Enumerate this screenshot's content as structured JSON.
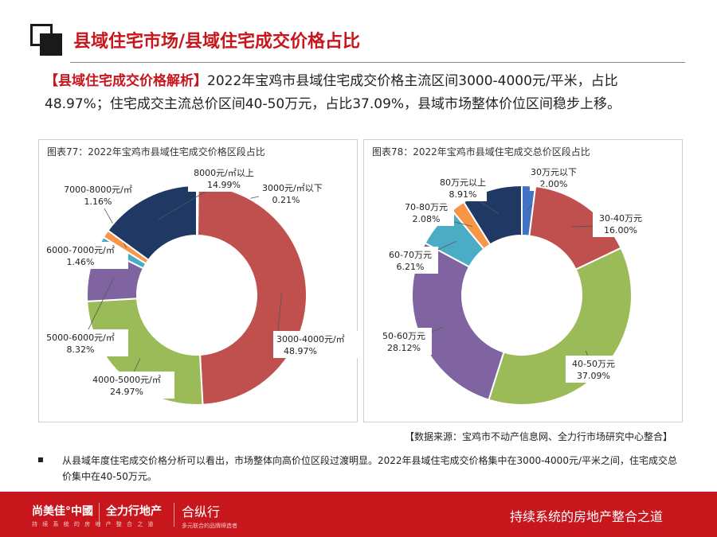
{
  "page_title": "县域住宅市场/县域住宅成交价格占比",
  "analysis": {
    "tag": "【县域住宅成交价格解析】",
    "text": "2022年宝鸡市县域住宅成交价格主流区间3000-4000元/平米，占比48.97%；住宅成交主流总价区间40-50万元，占比37.09%，县域市场整体价位区间稳步上移。"
  },
  "chart_data": [
    {
      "type": "pie",
      "title": "图表77：2022年宝鸡市县域住宅成交价格区段占比",
      "labels": [
        "3000元/㎡以下",
        "3000-4000元/㎡",
        "4000-5000元/㎡",
        "5000-6000元/㎡",
        "6000-7000元/㎡",
        "7000-8000元/㎡",
        "8000元/㎡以上"
      ],
      "values": [
        0.21,
        48.97,
        24.97,
        8.32,
        1.46,
        1.16,
        14.99
      ],
      "value_labels": [
        "0.21%",
        "48.97%",
        "24.97%",
        "8.32%",
        "1.46%",
        "1.16%",
        "14.99%"
      ],
      "colors": [
        "#4472c4",
        "#c0504d",
        "#9bbb59",
        "#8064a2",
        "#4bacc6",
        "#f79646",
        "#1f3864"
      ],
      "donut": true
    },
    {
      "type": "pie",
      "title": "图表78：2022年宝鸡市县域住宅成交总价区段占比",
      "labels": [
        "30万元以下",
        "30-40万元",
        "40-50万元",
        "50-60万元",
        "60-70万元",
        "70-80万元",
        "80万元以上"
      ],
      "values": [
        2.0,
        16.0,
        37.09,
        28.12,
        6.21,
        2.08,
        8.91
      ],
      "value_labels": [
        "2.00%",
        "16.00%",
        "37.09%",
        "28.12%",
        "6.21%",
        "2.08%",
        "8.91%"
      ],
      "colors": [
        "#4472c4",
        "#c0504d",
        "#9bbb59",
        "#8064a2",
        "#4bacc6",
        "#f79646",
        "#1f3864"
      ],
      "donut": true
    }
  ],
  "source": "【数据来源：宝鸡市不动产信息网、全力行市场研究中心整合】",
  "note": "从县域年度住宅成交价格分析可以看出，市场整体向高价位区段过渡明显。2022年县域住宅成交价格集中在3000-4000元/平米之间，住宅成交总价集中在40-50万元。",
  "footer": {
    "logo1": "尚美佳°中國",
    "logo1_sub": "持 续 系 统 的 房 地 产 整 合 之 道",
    "logo2": "全力行地产",
    "logo3": "合纵行",
    "logo3_sub": "多元联合的品牌缔造者",
    "slogan": "持续系统的房地产整合之道"
  }
}
